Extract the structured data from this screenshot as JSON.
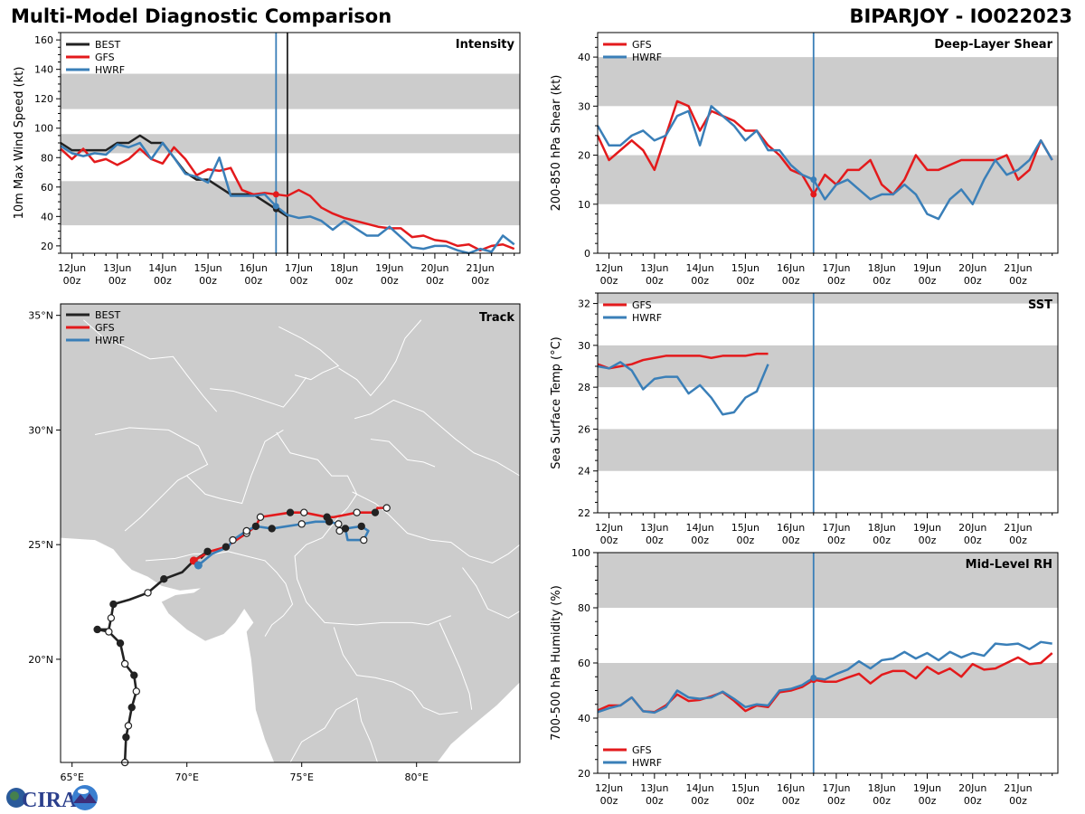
{
  "header": {
    "title": "Multi-Model Diagnostic Comparison",
    "storm": "BIPARJOY - IO022023"
  },
  "colors": {
    "BEST": "#222222",
    "GFS": "#e31a1c",
    "HWRF": "#3a7fb8",
    "band": "#cccccc",
    "land": "#cccccc",
    "border": "#ffffff"
  },
  "time_axis": {
    "start": "11Jun 18z",
    "step_hours": 6,
    "tick_labels": [
      [
        "12Jun",
        "00z"
      ],
      [
        "13Jun",
        "00z"
      ],
      [
        "14Jun",
        "00z"
      ],
      [
        "15Jun",
        "00z"
      ],
      [
        "16Jun",
        "00z"
      ],
      [
        "17Jun",
        "00z"
      ],
      [
        "18Jun",
        "00z"
      ],
      [
        "19Jun",
        "00z"
      ],
      [
        "20Jun",
        "00z"
      ],
      [
        "21Jun",
        "00z"
      ]
    ],
    "init_marker_day": 16.5,
    "best_end_day": 16.75
  },
  "chart_data": [
    {
      "id": "intensity",
      "type": "line",
      "title": "Intensity",
      "ylabel": "10m Max Wind Speed (kt)",
      "xlabel": "",
      "ylim": [
        15,
        165
      ],
      "yticks": [
        20,
        40,
        60,
        80,
        100,
        120,
        140,
        160
      ],
      "bands": [
        [
          34,
          64
        ],
        [
          83,
          96
        ],
        [
          113,
          137
        ]
      ],
      "legend": [
        "BEST",
        "GFS",
        "HWRF"
      ],
      "legend_position": "top-left",
      "vlines": [
        {
          "day": 16.5,
          "color": "HWRF"
        },
        {
          "day": 16.75,
          "color": "BEST"
        }
      ],
      "series": [
        {
          "name": "BEST",
          "x_start_day": 11.75,
          "values": [
            90,
            85,
            85,
            85,
            85,
            90,
            90,
            95,
            90,
            90,
            80,
            70,
            65,
            65,
            60,
            55,
            55,
            55,
            50,
            45,
            40
          ]
        },
        {
          "name": "GFS",
          "x_start_day": 11.75,
          "values": [
            86,
            79,
            86,
            77,
            79,
            75,
            79,
            86,
            79,
            76,
            87,
            79,
            68,
            72,
            71,
            73,
            58,
            55,
            56,
            55,
            54,
            58,
            54,
            46,
            42,
            39,
            37,
            35,
            33,
            32,
            32,
            26,
            27,
            24,
            23,
            20,
            21,
            17,
            20,
            21,
            18
          ]
        },
        {
          "name": "HWRF",
          "x_start_day": 11.75,
          "values": [
            88,
            83,
            81,
            83,
            82,
            89,
            87,
            90,
            79,
            90,
            80,
            69,
            67,
            63,
            80,
            54,
            54,
            54,
            55,
            47,
            41,
            39,
            40,
            37,
            31,
            37,
            32,
            27,
            27,
            33,
            26,
            19,
            18,
            20,
            20,
            17,
            15,
            18,
            16,
            27,
            21
          ]
        }
      ]
    },
    {
      "id": "shear",
      "type": "line",
      "title": "Deep-Layer Shear",
      "ylabel": "200-850 hPa Shear (kt)",
      "xlabel": "",
      "ylim": [
        0,
        45
      ],
      "yticks": [
        0,
        10,
        20,
        30,
        40
      ],
      "bands": [
        [
          10,
          20
        ],
        [
          30,
          40
        ]
      ],
      "legend": [
        "GFS",
        "HWRF"
      ],
      "legend_position": "top-left",
      "vlines": [
        {
          "day": 16.5,
          "color": "HWRF"
        }
      ],
      "series": [
        {
          "name": "GFS",
          "x_start_day": 11.75,
          "values": [
            24,
            19,
            21,
            23,
            21,
            17,
            24,
            31,
            30,
            25,
            29,
            28,
            27,
            25,
            25,
            22,
            20,
            17,
            16,
            12,
            16,
            14,
            17,
            17,
            19,
            14,
            12,
            15,
            20,
            17,
            17,
            18,
            19,
            19,
            19,
            19,
            20,
            15,
            17,
            23,
            19
          ]
        },
        {
          "name": "HWRF",
          "x_start_day": 11.75,
          "values": [
            26,
            22,
            22,
            24,
            25,
            23,
            24,
            28,
            29,
            22,
            30,
            28,
            26,
            23,
            25,
            21,
            21,
            18,
            16,
            15,
            11,
            14,
            15,
            13,
            11,
            12,
            12,
            14,
            12,
            8,
            7,
            11,
            13,
            10,
            15,
            19,
            16,
            17,
            19,
            23,
            19
          ]
        }
      ]
    },
    {
      "id": "sst",
      "type": "line",
      "title": "SST",
      "ylabel": "Sea Surface Temp (°C)",
      "xlabel": "",
      "ylim": [
        22,
        32.5
      ],
      "yticks": [
        22,
        24,
        26,
        28,
        30,
        32
      ],
      "bands": [
        [
          24,
          26
        ],
        [
          28,
          30
        ],
        [
          32,
          34
        ]
      ],
      "legend": [
        "GFS",
        "HWRF"
      ],
      "legend_position": "top-left",
      "vlines": [
        {
          "day": 16.5,
          "color": "HWRF"
        }
      ],
      "series": [
        {
          "name": "GFS",
          "x_start_day": 11.75,
          "values": [
            29.1,
            28.9,
            29.0,
            29.1,
            29.3,
            29.4,
            29.5,
            29.5,
            29.5,
            29.5,
            29.4,
            29.5,
            29.5,
            29.5,
            29.6,
            29.6
          ]
        },
        {
          "name": "HWRF",
          "x_start_day": 11.75,
          "values": [
            29.0,
            28.9,
            29.2,
            28.8,
            27.9,
            28.4,
            28.5,
            28.5,
            27.7,
            28.1,
            27.5,
            26.7,
            26.8,
            27.5,
            27.8,
            29.1
          ]
        }
      ]
    },
    {
      "id": "rh",
      "type": "line",
      "title": "Mid-Level RH",
      "ylabel": "700-500 hPa Humidity (%)",
      "xlabel": "",
      "ylim": [
        20,
        100
      ],
      "yticks": [
        20,
        40,
        60,
        80,
        100
      ],
      "bands": [
        [
          40,
          60
        ],
        [
          80,
          100
        ]
      ],
      "legend": [
        "GFS",
        "HWRF"
      ],
      "legend_position": "bottom-left",
      "vlines": [
        {
          "day": 16.5,
          "color": "HWRF"
        }
      ],
      "series": [
        {
          "name": "GFS",
          "x_start_day": 11.75,
          "values": [
            42.8,
            44.6,
            44.6,
            47.5,
            42.5,
            42.2,
            44.6,
            48.6,
            46.2,
            46.6,
            47.9,
            49.4,
            46.3,
            42.6,
            44.6,
            44.0,
            49.4,
            50.0,
            51.3,
            53.9,
            53.2,
            53.2,
            54.7,
            56.1,
            52.6,
            55.7,
            57.1,
            57.1,
            54.4,
            58.6,
            56.1,
            58.0,
            55.0,
            59.6,
            57.6,
            58.0,
            60.0,
            62.0,
            59.6,
            60.0,
            63.6
          ]
        },
        {
          "name": "HWRF",
          "x_start_day": 11.75,
          "values": [
            42.2,
            43.6,
            44.6,
            47.5,
            42.5,
            42.0,
            44.0,
            50.0,
            47.5,
            47.0,
            47.5,
            49.6,
            47.0,
            44.0,
            45.0,
            44.6,
            50.0,
            50.6,
            52.0,
            54.6,
            54.0,
            56.0,
            57.6,
            60.6,
            58.0,
            61.0,
            61.6,
            64.0,
            61.6,
            63.6,
            61.0,
            64.0,
            62.0,
            63.6,
            62.6,
            67.0,
            66.6,
            67.0,
            65.0,
            67.6,
            67.0
          ]
        }
      ]
    },
    {
      "id": "track",
      "type": "scatter",
      "title": "Track",
      "xlabel": "",
      "ylabel": "",
      "xlim": [
        64.5,
        84.5
      ],
      "ylim": [
        15.5,
        35.5
      ],
      "xticks": [
        65,
        70,
        75,
        80
      ],
      "xtick_labels": [
        "65°E",
        "70°E",
        "75°E",
        "80°E"
      ],
      "yticks": [
        20,
        25,
        30,
        35
      ],
      "ytick_labels": [
        "20°N",
        "25°N",
        "30°N",
        "35°N"
      ],
      "legend": [
        "BEST",
        "GFS",
        "HWRF"
      ],
      "legend_position": "top-left",
      "series": [
        {
          "name": "BEST",
          "points": [
            [
              67.3,
              15.5
            ],
            [
              67.35,
              16.6
            ],
            [
              67.45,
              17.1
            ],
            [
              67.6,
              17.9
            ],
            [
              67.8,
              18.6
            ],
            [
              67.7,
              19.3
            ],
            [
              67.3,
              19.8
            ],
            [
              67.1,
              20.7
            ],
            [
              66.6,
              21.2
            ],
            [
              66.1,
              21.3
            ],
            [
              66.6,
              21.3
            ],
            [
              66.7,
              21.8
            ],
            [
              66.8,
              22.4
            ],
            [
              67.5,
              22.6
            ],
            [
              68.3,
              22.9
            ],
            [
              69.0,
              23.5
            ],
            [
              69.8,
              23.8
            ],
            [
              70.3,
              24.3
            ],
            [
              70.9,
              24.7
            ],
            [
              70.6,
              24.4
            ]
          ],
          "markers": [
            "open",
            "filled",
            "open",
            "filled",
            "open",
            "filled",
            "open",
            "filled",
            "open",
            "filled",
            "",
            "open",
            "filled",
            "",
            "open",
            "filled",
            "",
            "",
            "filled",
            ""
          ]
        },
        {
          "name": "GFS",
          "points": [
            [
              70.3,
              24.3
            ],
            [
              71.0,
              24.7
            ],
            [
              71.7,
              24.9
            ],
            [
              72.6,
              25.5
            ],
            [
              73.0,
              25.8
            ],
            [
              73.2,
              26.2
            ],
            [
              74.5,
              26.4
            ],
            [
              75.1,
              26.4
            ],
            [
              76.1,
              26.2
            ],
            [
              76.4,
              26.2
            ],
            [
              77.4,
              26.4
            ],
            [
              78.2,
              26.4
            ],
            [
              78.3,
              26.6
            ],
            [
              78.7,
              26.6
            ]
          ],
          "markers": [
            "filled",
            "",
            "filled",
            "open",
            "filled",
            "open",
            "filled",
            "open",
            "filled",
            "",
            "open",
            "filled",
            "",
            "open"
          ]
        },
        {
          "name": "HWRF",
          "points": [
            [
              70.5,
              24.1
            ],
            [
              71.1,
              24.6
            ],
            [
              71.8,
              24.9
            ],
            [
              72.0,
              25.2
            ],
            [
              72.6,
              25.6
            ],
            [
              73.0,
              25.8
            ],
            [
              73.7,
              25.7
            ],
            [
              75.0,
              25.9
            ],
            [
              75.6,
              26.0
            ],
            [
              76.2,
              26.0
            ],
            [
              76.6,
              25.9
            ],
            [
              76.65,
              25.6
            ],
            [
              76.9,
              25.7
            ],
            [
              77.0,
              25.2
            ],
            [
              77.7,
              25.2
            ],
            [
              77.9,
              25.6
            ],
            [
              77.6,
              25.8
            ],
            [
              76.9,
              25.7
            ]
          ],
          "markers": [
            "filled",
            "",
            "",
            "open",
            "open",
            "",
            "filled",
            "open",
            "",
            "filled",
            "open",
            "open",
            "filled",
            "",
            "open",
            "",
            "filled",
            ""
          ]
        }
      ]
    }
  ],
  "logo": {
    "text": "CIRA"
  }
}
